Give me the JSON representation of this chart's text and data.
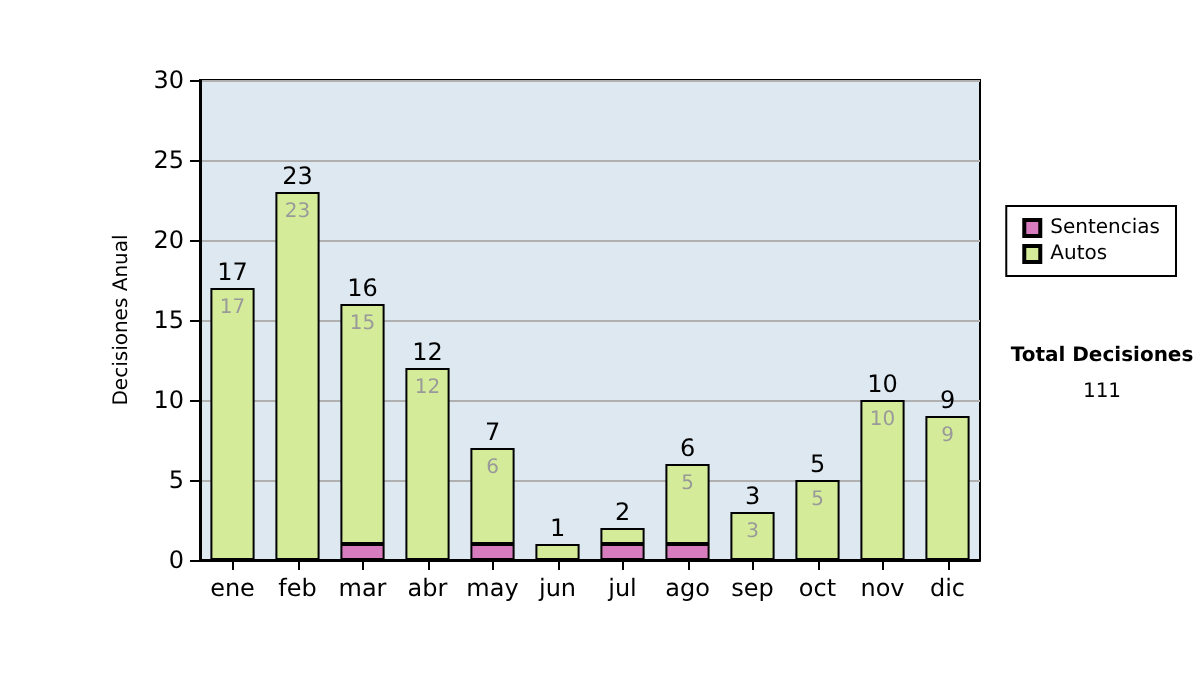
{
  "chart_data": {
    "type": "bar",
    "ylabel": "Decisiones Anual",
    "stacked": true,
    "categories": [
      "ene",
      "feb",
      "mar",
      "abr",
      "may",
      "jun",
      "jul",
      "ago",
      "sep",
      "oct",
      "nov",
      "dic"
    ],
    "series": [
      {
        "name": "Sentencias",
        "color": "#d87cc0",
        "values": [
          0,
          0,
          1,
          0,
          1,
          0,
          1,
          1,
          0,
          0,
          0,
          0
        ]
      },
      {
        "name": "Autos",
        "color": "#d4ec9a",
        "values": [
          17,
          23,
          15,
          12,
          6,
          1,
          1,
          5,
          3,
          5,
          10,
          9
        ],
        "value_labels": [
          "17",
          "23",
          "15",
          "12",
          "6",
          null,
          null,
          "5",
          "3",
          "5",
          "10",
          "9"
        ]
      }
    ],
    "totals": [
      "17",
      "23",
      "16",
      "12",
      "7",
      "1",
      "2",
      "6",
      "3",
      "5",
      "10",
      "9"
    ],
    "ylim": [
      0,
      30
    ],
    "yticks": [
      0,
      5,
      10,
      15,
      20,
      25,
      30
    ],
    "grid": "y",
    "legend": "right",
    "annotations": [
      "Total Decisiones",
      "111"
    ]
  }
}
